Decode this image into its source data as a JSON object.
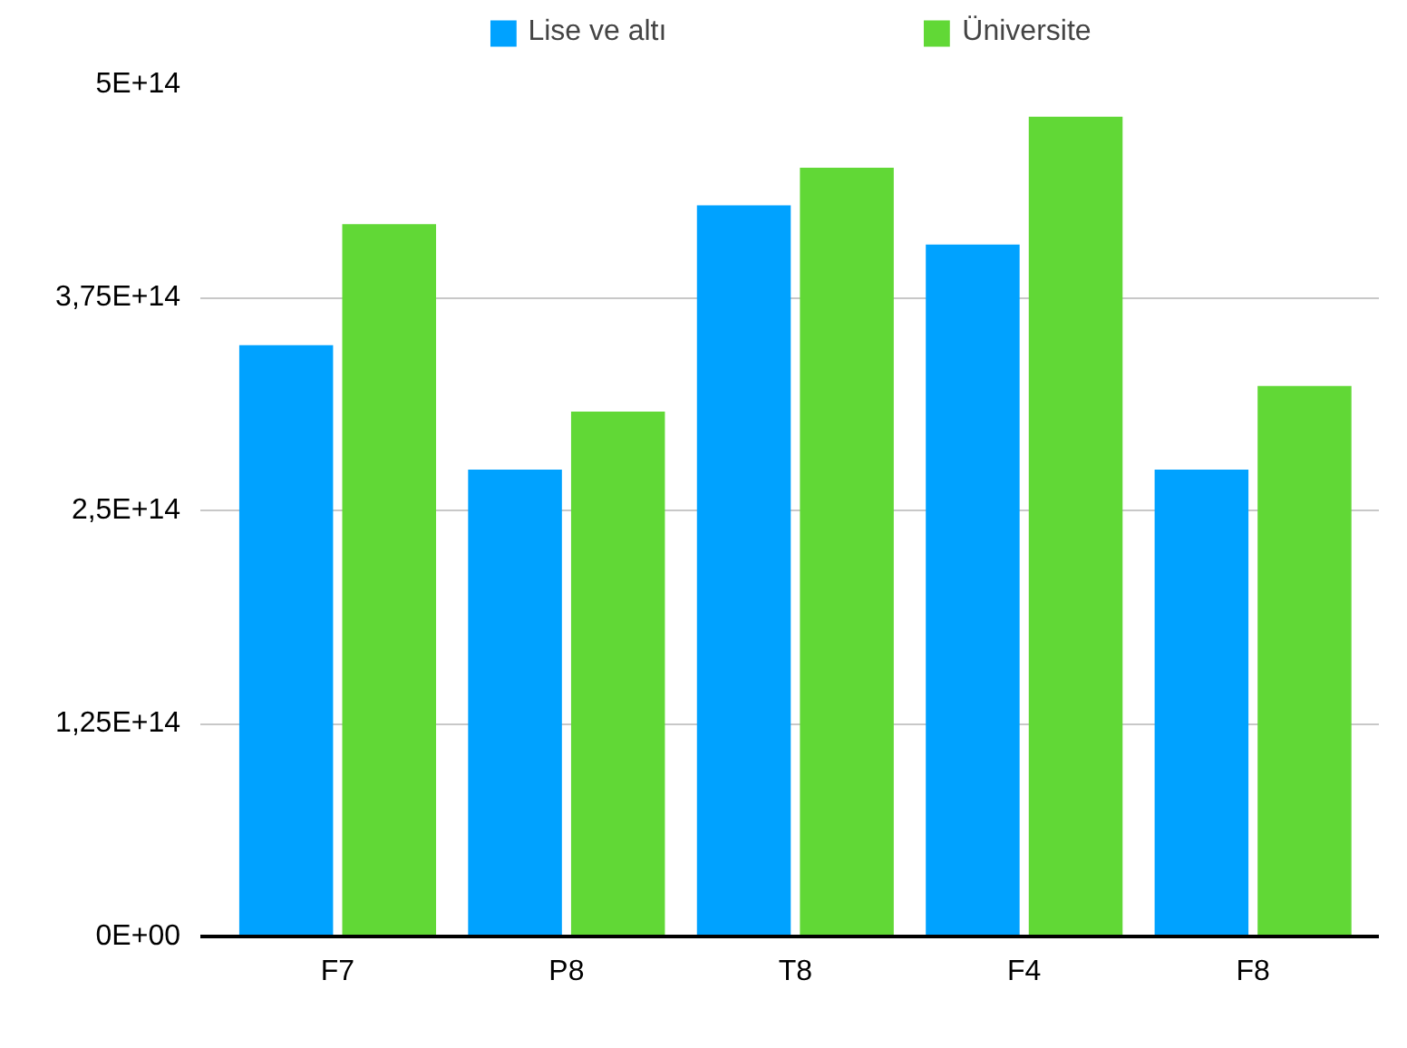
{
  "chart_data": {
    "type": "bar",
    "categories": [
      "F7",
      "P8",
      "T8",
      "F4",
      "F8"
    ],
    "series": [
      {
        "name": "Lise ve altı",
        "color": "#00a2ff",
        "values": [
          347000000000000.0,
          274000000000000.0,
          429000000000000.0,
          406000000000000.0,
          274000000000000.0
        ]
      },
      {
        "name": "Üniversite",
        "color": "#61d836",
        "values": [
          418000000000000.0,
          308000000000000.0,
          451000000000000.0,
          481000000000000.0,
          323000000000000.0
        ]
      }
    ],
    "ylim": [
      0,
      500000000000000.0
    ],
    "yticks": [
      {
        "value": 0,
        "label": "0E+00"
      },
      {
        "value": 125000000000000.0,
        "label": "1,25E+14"
      },
      {
        "value": 250000000000000.0,
        "label": "2,5E+14"
      },
      {
        "value": 375000000000000.0,
        "label": "3,75E+14"
      },
      {
        "value": 500000000000000.0,
        "label": "5E+14"
      }
    ],
    "grid": "y",
    "legend": "top"
  }
}
